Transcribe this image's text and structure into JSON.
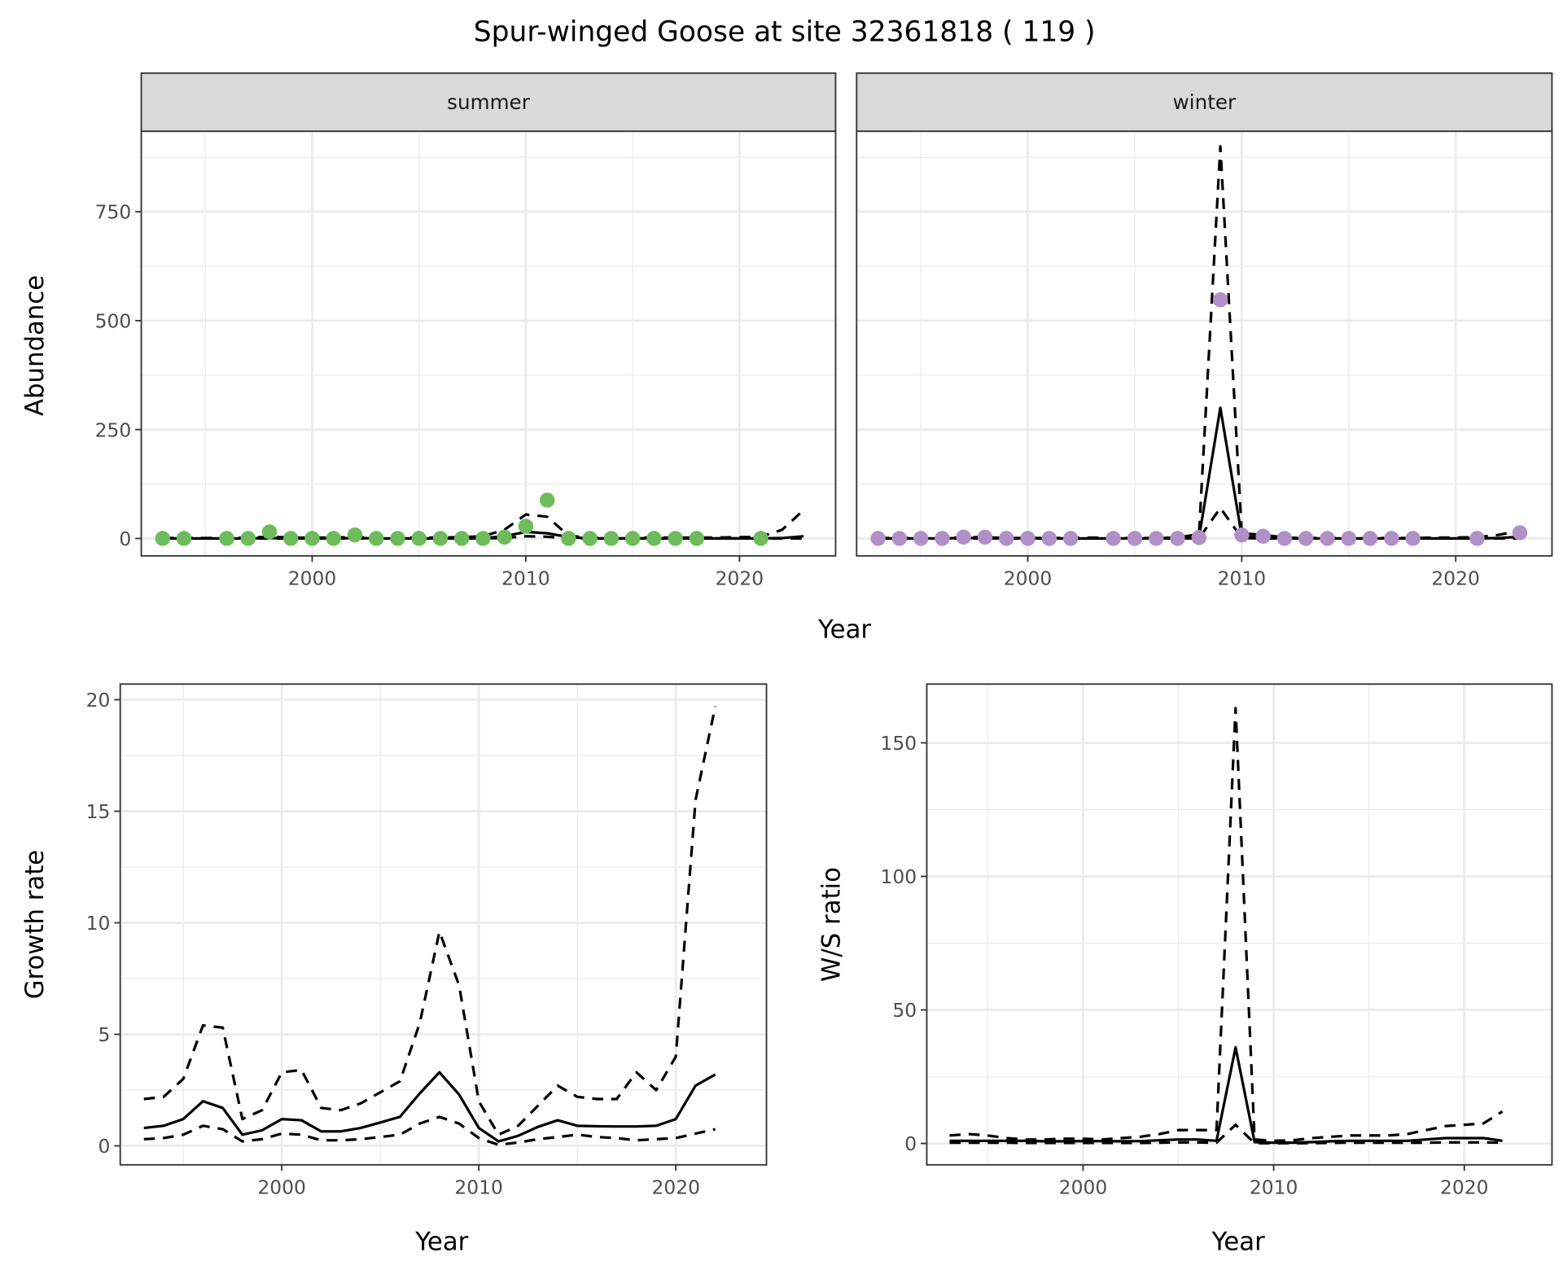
{
  "title": "Spur-winged Goose at site 32361818 ( 119 )",
  "colors": {
    "summer_points": "#6dbb5b",
    "winter_points": "#b18fc7",
    "lines": "#000000",
    "strip_bg": "#d9d9d9",
    "grid": "#ebebeb"
  },
  "chart_data": [
    {
      "type": "line",
      "panel": "summer",
      "strip_label": "summer",
      "xlabel": "Year",
      "ylabel": "Abundance",
      "xlim": [
        1992,
        2024.5
      ],
      "ylim": [
        -40,
        935
      ],
      "xticks": [
        2000,
        2010,
        2020
      ],
      "yticks": [
        0,
        250,
        500,
        750
      ],
      "grid": true,
      "points": {
        "x": [
          1993,
          1994,
          1996,
          1997,
          1998,
          1999,
          2000,
          2001,
          2002,
          2003,
          2004,
          2005,
          2006,
          2007,
          2008,
          2009,
          2010,
          2011,
          2012,
          2013,
          2014,
          2015,
          2016,
          2017,
          2018,
          2021
        ],
        "y": [
          0,
          0,
          0,
          0,
          15,
          0,
          0,
          0,
          8,
          0,
          0,
          0,
          0,
          0,
          0,
          3,
          28,
          88,
          0,
          0,
          0,
          0,
          0,
          0,
          0,
          0
        ]
      },
      "x": [
        1993,
        1994,
        1995,
        1996,
        1997,
        1998,
        1999,
        2000,
        2001,
        2002,
        2003,
        2004,
        2005,
        2006,
        2007,
        2008,
        2009,
        2010,
        2011,
        2012,
        2013,
        2014,
        2015,
        2016,
        2017,
        2018,
        2019,
        2020,
        2021,
        2022,
        2023
      ],
      "mean": [
        0,
        0,
        0,
        0,
        0,
        1,
        0,
        0,
        0,
        1,
        0,
        0,
        0,
        0,
        0,
        1,
        5,
        15,
        12,
        3,
        0,
        0,
        0,
        0,
        0,
        0,
        0,
        0,
        0,
        1,
        5
      ],
      "upper": [
        1,
        1,
        1,
        1,
        2,
        4,
        2,
        2,
        2,
        3,
        2,
        2,
        2,
        2,
        3,
        5,
        20,
        55,
        50,
        6,
        2,
        2,
        2,
        2,
        2,
        2,
        2,
        3,
        4,
        20,
        65
      ],
      "lower": [
        0,
        0,
        0,
        0,
        0,
        0,
        0,
        0,
        0,
        0,
        0,
        0,
        0,
        0,
        0,
        0,
        1,
        5,
        4,
        0,
        0,
        0,
        0,
        0,
        0,
        0,
        0,
        0,
        0,
        0,
        0
      ]
    },
    {
      "type": "line",
      "panel": "winter",
      "strip_label": "winter",
      "xlim": [
        1992,
        2024.5
      ],
      "ylim": [
        -40,
        935
      ],
      "xticks": [
        2000,
        2010,
        2020
      ],
      "yticks": [
        0,
        250,
        500,
        750
      ],
      "grid": true,
      "points": {
        "x": [
          1993,
          1994,
          1995,
          1996,
          1997,
          1998,
          1999,
          2000,
          2001,
          2002,
          2004,
          2005,
          2006,
          2007,
          2008,
          2009,
          2010,
          2011,
          2012,
          2013,
          2014,
          2015,
          2016,
          2017,
          2018,
          2021,
          2023
        ],
        "y": [
          0,
          0,
          0,
          0,
          3,
          3,
          0,
          0,
          0,
          0,
          0,
          0,
          0,
          0,
          2,
          548,
          8,
          5,
          0,
          0,
          0,
          0,
          0,
          0,
          0,
          0,
          13
        ]
      },
      "x": [
        1993,
        1994,
        1995,
        1996,
        1997,
        1998,
        1999,
        2000,
        2001,
        2002,
        2003,
        2004,
        2005,
        2006,
        2007,
        2008,
        2009,
        2010,
        2011,
        2012,
        2013,
        2014,
        2015,
        2016,
        2017,
        2018,
        2019,
        2020,
        2021,
        2022,
        2023
      ],
      "mean": [
        0,
        0,
        0,
        0,
        1,
        1,
        0,
        0,
        0,
        0,
        0,
        0,
        0,
        0,
        0,
        2,
        300,
        5,
        3,
        0,
        0,
        0,
        0,
        0,
        0,
        0,
        0,
        0,
        0,
        1,
        4
      ],
      "upper": [
        1,
        1,
        1,
        1,
        3,
        3,
        1,
        1,
        1,
        1,
        2,
        1,
        1,
        1,
        2,
        10,
        900,
        12,
        8,
        2,
        1,
        1,
        1,
        1,
        1,
        1,
        2,
        2,
        3,
        8,
        18
      ],
      "lower": [
        0,
        0,
        0,
        0,
        0,
        0,
        0,
        0,
        0,
        0,
        0,
        0,
        0,
        0,
        0,
        0,
        70,
        1,
        0,
        0,
        0,
        0,
        0,
        0,
        0,
        0,
        0,
        0,
        0,
        0,
        0
      ]
    },
    {
      "type": "line",
      "panel": "growth",
      "xlabel": "Year",
      "ylabel": "Growth rate",
      "xlim": [
        1991.8,
        2024.6
      ],
      "ylim": [
        -0.85,
        20.7
      ],
      "xticks": [
        2000,
        2010,
        2020
      ],
      "yticks": [
        0,
        5,
        10,
        15,
        20
      ],
      "grid": true,
      "x": [
        1993,
        1994,
        1995,
        1996,
        1997,
        1998,
        1999,
        2000,
        2001,
        2002,
        2003,
        2004,
        2005,
        2006,
        2007,
        2008,
        2009,
        2010,
        2011,
        2012,
        2013,
        2014,
        2015,
        2016,
        2017,
        2018,
        2019,
        2020,
        2021,
        2022
      ],
      "mean": [
        0.8,
        0.9,
        1.2,
        2.0,
        1.7,
        0.5,
        0.7,
        1.2,
        1.15,
        0.65,
        0.65,
        0.8,
        1.05,
        1.3,
        2.35,
        3.3,
        2.3,
        0.8,
        0.2,
        0.45,
        0.85,
        1.15,
        0.9,
        0.88,
        0.87,
        0.87,
        0.9,
        1.2,
        2.7,
        3.2
      ],
      "upper": [
        2.1,
        2.2,
        3.0,
        5.4,
        5.3,
        1.2,
        1.6,
        3.3,
        3.4,
        1.7,
        1.6,
        1.9,
        2.4,
        2.9,
        5.5,
        9.6,
        7.2,
        2.0,
        0.5,
        0.9,
        1.8,
        2.7,
        2.2,
        2.1,
        2.1,
        3.3,
        2.5,
        4.0,
        15.5,
        19.7
      ],
      "lower": [
        0.3,
        0.35,
        0.5,
        0.9,
        0.75,
        0.2,
        0.3,
        0.55,
        0.5,
        0.25,
        0.25,
        0.3,
        0.4,
        0.5,
        1.0,
        1.3,
        1.0,
        0.35,
        0.05,
        0.15,
        0.3,
        0.4,
        0.5,
        0.4,
        0.35,
        0.25,
        0.3,
        0.35,
        0.55,
        0.75
      ]
    },
    {
      "type": "line",
      "panel": "ws_ratio",
      "xlabel": "Year",
      "ylabel": "W/S ratio",
      "xlim": [
        1991.8,
        2024.6
      ],
      "ylim": [
        -8,
        172
      ],
      "xticks": [
        2000,
        2010,
        2020
      ],
      "yticks": [
        0,
        50,
        100,
        150
      ],
      "grid": true,
      "x": [
        1993,
        1994,
        1995,
        1996,
        1997,
        1998,
        1999,
        2000,
        2001,
        2002,
        2003,
        2004,
        2005,
        2006,
        2007,
        2008,
        2009,
        2010,
        2011,
        2012,
        2013,
        2014,
        2015,
        2016,
        2017,
        2018,
        2019,
        2020,
        2021,
        2022
      ],
      "mean": [
        1,
        1,
        1,
        1,
        1,
        0.8,
        0.8,
        0.9,
        0.9,
        0.8,
        0.9,
        1.2,
        1.5,
        1.5,
        1,
        36,
        0.5,
        0.3,
        0.3,
        0.5,
        0.8,
        1,
        1,
        1,
        1,
        1.5,
        2,
        2,
        2,
        1
      ],
      "upper": [
        3,
        3.5,
        3,
        2,
        1.5,
        1.5,
        1.8,
        1.8,
        1.5,
        2,
        2.5,
        3.5,
        5,
        5,
        5,
        163,
        1.5,
        1,
        1.2,
        2,
        2.5,
        3,
        3,
        3,
        3.5,
        5,
        6.5,
        7,
        7.5,
        12
      ],
      "lower": [
        0.3,
        0.3,
        0.3,
        0.3,
        0.2,
        0.2,
        0.2,
        0.2,
        0.2,
        0.2,
        0.2,
        0.3,
        0.4,
        0.4,
        0.3,
        7,
        0.1,
        0.1,
        0.1,
        0.1,
        0.2,
        0.3,
        0.3,
        0.3,
        0.3,
        0.3,
        0.4,
        0.4,
        0.4,
        0.3
      ]
    }
  ]
}
